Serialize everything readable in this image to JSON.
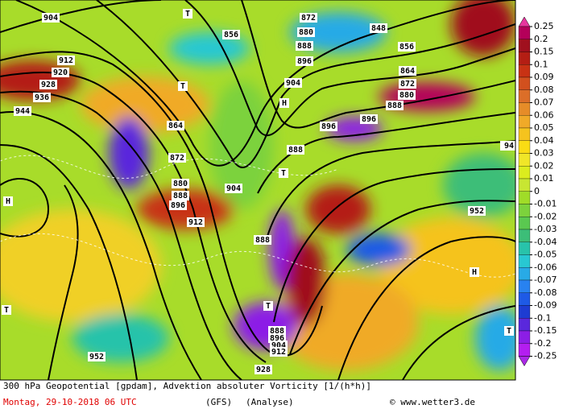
{
  "map": {
    "labels": [
      "904",
      "912",
      "920",
      "928",
      "936",
      "944",
      "872",
      "880",
      "888",
      "896",
      "904",
      "856",
      "848",
      "856",
      "864",
      "872",
      "880",
      "888",
      "896",
      "864",
      "872",
      "880",
      "888",
      "896",
      "912",
      "904",
      "888",
      "896",
      "888",
      "952",
      "952",
      "888",
      "896",
      "904",
      "912",
      "928",
      "94",
      "T",
      "T",
      "T",
      "T",
      "T",
      "T",
      "H",
      "H",
      "H"
    ],
    "footer": {
      "title": "300 hPa Geopotential [gpdam], Advektion absoluter Vorticity [1/(h*h)]",
      "date": "Montag, 29-10-2018  06 UTC",
      "model": "(GFS)",
      "run": "(Analyse)",
      "credit": "© www.wetter3.de"
    },
    "colorbar": {
      "levels": [
        0.25,
        0.2,
        0.15,
        0.1,
        0.09,
        0.08,
        0.07,
        0.06,
        0.05,
        0.04,
        0.03,
        0.02,
        0.01,
        0,
        -0.01,
        -0.02,
        -0.03,
        -0.04,
        -0.05,
        -0.06,
        -0.07,
        -0.08,
        -0.09,
        -0.1,
        -0.15,
        -0.2,
        -0.25
      ],
      "colors": [
        "#b4005a",
        "#a0101e",
        "#b41e14",
        "#c83214",
        "#d2501e",
        "#dc6e28",
        "#e68c28",
        "#f0aa28",
        "#f5c31e",
        "#fadc14",
        "#f0e628",
        "#dcec1e",
        "#c8e632",
        "#a0dc28",
        "#7cd23c",
        "#5ac850",
        "#3cbe78",
        "#28c3aa",
        "#28c8d2",
        "#28aae6",
        "#2882f0",
        "#1e5ae6",
        "#1e3cd2",
        "#5a28dc",
        "#8c1ee6",
        "#b41ef0"
      ],
      "over_color": "#e6369e",
      "under_color": "#aa28e6"
    }
  }
}
